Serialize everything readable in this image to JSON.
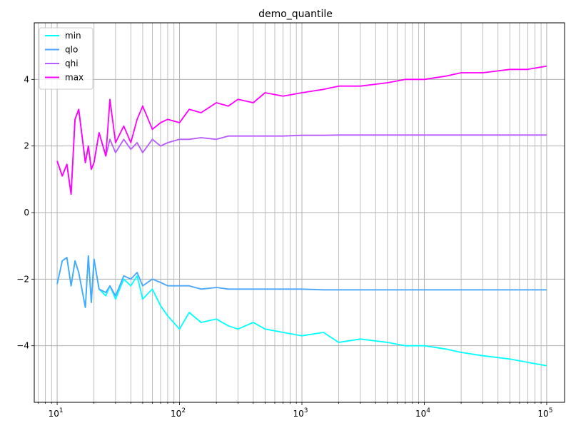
{
  "chart_data": {
    "type": "line",
    "title": "demo_quantile",
    "xlabel": "",
    "ylabel": "",
    "xscale": "log",
    "xlim": [
      6.5,
      140000
    ],
    "ylim": [
      -5.7,
      5.7
    ],
    "grid": true,
    "legend_position": "upper-left",
    "x_ticks": [
      {
        "value": 10,
        "base": "10",
        "exp": "1"
      },
      {
        "value": 100,
        "base": "10",
        "exp": "2"
      },
      {
        "value": 1000,
        "base": "10",
        "exp": "3"
      },
      {
        "value": 10000,
        "base": "10",
        "exp": "4"
      },
      {
        "value": 100000,
        "base": "10",
        "exp": "5"
      }
    ],
    "y_ticks": [
      {
        "value": -4,
        "label": "−4"
      },
      {
        "value": -2,
        "label": "−2"
      },
      {
        "value": 0,
        "label": "0"
      },
      {
        "value": 2,
        "label": "2"
      },
      {
        "value": 4,
        "label": "4"
      }
    ],
    "x": [
      10,
      11,
      12,
      13,
      14,
      15,
      17,
      18,
      19,
      20,
      22,
      25,
      27,
      30,
      35,
      40,
      45,
      50,
      60,
      70,
      80,
      100,
      120,
      150,
      200,
      250,
      300,
      400,
      500,
      700,
      1000,
      1500,
      2000,
      3000,
      5000,
      7000,
      10000,
      15000,
      20000,
      30000,
      50000,
      70000,
      100000
    ],
    "series": [
      {
        "name": "min",
        "color": "#00ffff",
        "values": [
          -2.15,
          -1.45,
          -1.35,
          -2.2,
          -1.45,
          -1.8,
          -2.85,
          -1.3,
          -2.7,
          -1.4,
          -2.3,
          -2.5,
          -2.2,
          -2.6,
          -2.0,
          -2.2,
          -1.9,
          -2.6,
          -2.3,
          -2.8,
          -3.1,
          -3.5,
          -3.0,
          -3.3,
          -3.2,
          -3.4,
          -3.5,
          -3.3,
          -3.5,
          -3.6,
          -3.7,
          -3.6,
          -3.9,
          -3.8,
          -3.9,
          -4.0,
          -4.0,
          -4.1,
          -4.2,
          -4.3,
          -4.4,
          -4.5,
          -4.6
        ]
      },
      {
        "name": "qlo",
        "color": "#49a6ff",
        "values": [
          -2.15,
          -1.45,
          -1.35,
          -2.2,
          -1.45,
          -1.8,
          -2.85,
          -1.3,
          -2.7,
          -1.4,
          -2.3,
          -2.4,
          -2.2,
          -2.5,
          -1.9,
          -2.0,
          -1.8,
          -2.2,
          -2.0,
          -2.1,
          -2.2,
          -2.2,
          -2.2,
          -2.3,
          -2.25,
          -2.3,
          -2.3,
          -2.3,
          -2.3,
          -2.3,
          -2.3,
          -2.32,
          -2.32,
          -2.32,
          -2.32,
          -2.32,
          -2.32,
          -2.32,
          -2.32,
          -2.32,
          -2.32,
          -2.32,
          -2.32
        ]
      },
      {
        "name": "qhi",
        "color": "#b65bff",
        "values": [
          1.55,
          1.1,
          1.45,
          0.55,
          2.8,
          3.1,
          1.5,
          2.0,
          1.3,
          1.5,
          2.4,
          1.7,
          2.2,
          1.8,
          2.2,
          1.9,
          2.1,
          1.8,
          2.2,
          2.0,
          2.1,
          2.2,
          2.2,
          2.25,
          2.2,
          2.3,
          2.3,
          2.3,
          2.3,
          2.3,
          2.32,
          2.32,
          2.33,
          2.33,
          2.33,
          2.33,
          2.33,
          2.33,
          2.33,
          2.33,
          2.33,
          2.33,
          2.33
        ]
      },
      {
        "name": "max",
        "color": "#ff00ff",
        "values": [
          1.55,
          1.1,
          1.45,
          0.55,
          2.8,
          3.1,
          1.5,
          2.0,
          1.3,
          1.5,
          2.4,
          1.7,
          3.4,
          2.1,
          2.6,
          2.1,
          2.8,
          3.2,
          2.5,
          2.7,
          2.8,
          2.7,
          3.1,
          3.0,
          3.3,
          3.2,
          3.4,
          3.3,
          3.6,
          3.5,
          3.6,
          3.7,
          3.8,
          3.8,
          3.9,
          4.0,
          4.0,
          4.1,
          4.2,
          4.2,
          4.3,
          4.3,
          4.4
        ]
      }
    ]
  }
}
